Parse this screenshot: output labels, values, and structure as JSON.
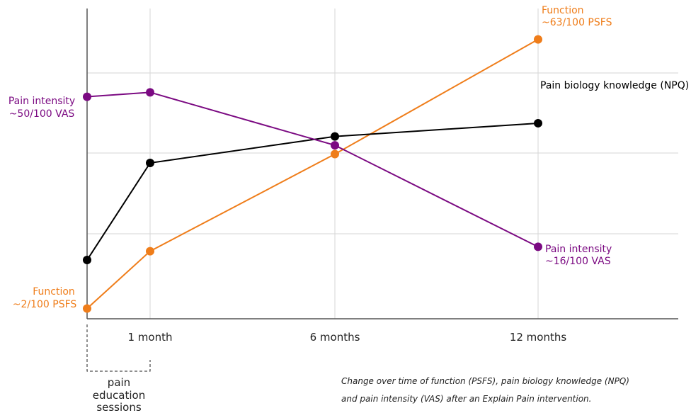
{
  "chart_data": {
    "type": "line",
    "x": [
      0,
      1,
      6,
      12
    ],
    "categories": [
      "",
      "1 month",
      "6 months",
      "12 months"
    ],
    "xlim": [
      0,
      12
    ],
    "series": [
      {
        "key": "function",
        "color": "#ef7d1a",
        "values": [
          2,
          15,
          37,
          63
        ],
        "start_label": [
          "Function",
          "~2/100 PSFS"
        ],
        "end_label": [
          "Function",
          "~63/100 PSFS"
        ]
      },
      {
        "key": "knowledge",
        "color": "#000000",
        "values": [
          13,
          35,
          41,
          44
        ],
        "end_label": [
          "Pain biology knowledge (NPQ)"
        ]
      },
      {
        "key": "pain",
        "color": "#7b0a82",
        "values": [
          50,
          51,
          39,
          16
        ],
        "start_label": [
          "Pain intensity",
          "~50/100 VAS"
        ],
        "end_label": [
          "Pain intensity",
          "~16/100 VAS"
        ]
      }
    ],
    "ylim": [
      0,
      70
    ],
    "grid": true,
    "annotations": {
      "education_label": [
        "pain",
        "education",
        "sessions"
      ],
      "caption": [
        "Change over time of function (PSFS), pain biology knowledge (NPQ)",
        "and pain intensity (VAS) after an Explain Pain intervention."
      ]
    }
  }
}
